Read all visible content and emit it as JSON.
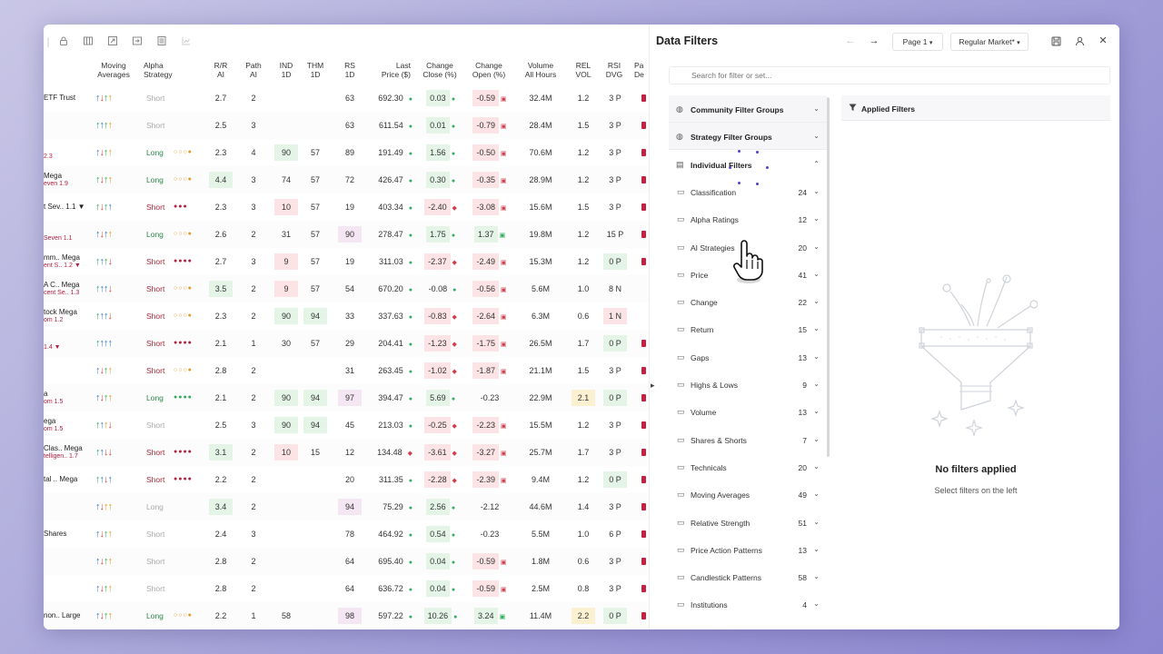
{
  "toolbar": {
    "icons": [
      "lock-icon",
      "columns-icon",
      "expand-icon",
      "collapse-icon",
      "calculator-icon",
      "chart-icon"
    ]
  },
  "columns": [
    "Moving\nAverages",
    "Alpha\nStrategy",
    "R/R\nAI",
    "Path\nAI",
    "IND\n1D",
    "THM\n1D",
    "RS\n1D",
    "Last\nPrice ($)",
    "Change\nClose (%)",
    "Change\nOpen (%)",
    "Volume\nAll Hours",
    "REL\nVOL",
    "RSI\nDVG",
    "Pa\nDe"
  ],
  "rows": [
    {
      "n1": "ETF Trust",
      "n2": "",
      "ma": "urgy",
      "st": "Short",
      "sc": "grey",
      "dots": "",
      "dc": "",
      "rr": "2.7",
      "rrh": "",
      "path": "2",
      "ind": "",
      "indh": "",
      "thm": "",
      "thmh": "",
      "rs": "63",
      "rsh": "",
      "price": "692.30",
      "pm": "g",
      "cc": "0.03",
      "cch": "g",
      "co": "-0.59",
      "coh": "r",
      "vol": "32.4M",
      "rel": "1.2",
      "relh": "",
      "rsi": "3 P",
      "rsih": "",
      "edge": true
    },
    {
      "n1": "",
      "n2": "",
      "ma": "gugy",
      "st": "Short",
      "sc": "grey",
      "dots": "",
      "dc": "",
      "rr": "2.5",
      "rrh": "",
      "path": "3",
      "ind": "",
      "indh": "",
      "thm": "",
      "thmh": "",
      "rs": "63",
      "rsh": "",
      "price": "611.54",
      "pm": "g",
      "cc": "0.01",
      "cch": "g",
      "co": "-0.79",
      "coh": "r",
      "vol": "28.4M",
      "rel": "1.5",
      "relh": "",
      "rsi": "3 P",
      "rsih": "",
      "edge": true
    },
    {
      "n1": "",
      "n2": "2.3",
      "ma": "urgy",
      "st": "Long",
      "sc": "long",
      "dots": "○○○●",
      "dc": "ora",
      "rr": "2.3",
      "rrh": "",
      "path": "4",
      "ind": "90",
      "indh": "g",
      "thm": "57",
      "thmh": "",
      "rs": "89",
      "rsh": "",
      "price": "191.49",
      "pm": "g",
      "cc": "1.56",
      "cch": "g",
      "co": "-0.50",
      "coh": "r",
      "vol": "70.6M",
      "rel": "1.2",
      "relh": "",
      "rsi": "3 P",
      "rsih": "",
      "edge": true
    },
    {
      "n1": "Mega",
      "n2": "even 1.9",
      "ma": "grgy",
      "st": "Long",
      "sc": "long",
      "dots": "○○○●",
      "dc": "ora",
      "rr": "4.4",
      "rrh": "g",
      "path": "3",
      "ind": "74",
      "indh": "",
      "thm": "57",
      "thmh": "",
      "rs": "72",
      "rsh": "",
      "price": "426.47",
      "pm": "g",
      "cc": "0.30",
      "cch": "g",
      "co": "-0.35",
      "coh": "r",
      "vol": "28.9M",
      "rel": "1.2",
      "relh": "",
      "rsi": "3 P",
      "rsih": "",
      "edge": true
    },
    {
      "n1": "t Sev.. 1.1 ▼",
      "n2": "",
      "ma": "grgu",
      "st": "Short",
      "sc": "short",
      "dots": "●●●",
      "dc": "red",
      "rr": "2.3",
      "rrh": "",
      "path": "3",
      "ind": "10",
      "indh": "r",
      "thm": "57",
      "thmh": "",
      "rs": "19",
      "rsh": "",
      "price": "403.34",
      "pm": "g",
      "cc": "-2.40",
      "cch": "r",
      "co": "-3.08",
      "coh": "r",
      "vol": "15.6M",
      "rel": "1.5",
      "relh": "",
      "rsi": "3 P",
      "rsih": "",
      "edge": true
    },
    {
      "n1": "",
      "n2": "Seven 1.1",
      "ma": "uruy",
      "st": "Long",
      "sc": "long",
      "dots": "○○○●",
      "dc": "ora",
      "rr": "2.6",
      "rrh": "",
      "path": "2",
      "ind": "31",
      "indh": "",
      "thm": "57",
      "thmh": "",
      "rs": "90",
      "rsh": "p",
      "price": "278.47",
      "pm": "g",
      "cc": "1.75",
      "cch": "g",
      "co": "1.37",
      "coh": "g",
      "vol": "19.8M",
      "rel": "1.2",
      "relh": "",
      "rsi": "15 P",
      "rsih": "",
      "edge": true
    },
    {
      "n1": "mm.. Mega",
      "n2": "ent S.. 1.2 ▼",
      "ma": "gugr",
      "st": "Short",
      "sc": "short",
      "dots": "●●●●",
      "dc": "red",
      "rr": "2.7",
      "rrh": "",
      "path": "3",
      "ind": "9",
      "indh": "r",
      "thm": "57",
      "thmh": "",
      "rs": "19",
      "rsh": "",
      "price": "311.03",
      "pm": "g",
      "cc": "-2.37",
      "cch": "r",
      "co": "-2.49",
      "coh": "r",
      "vol": "15.3M",
      "rel": "1.2",
      "relh": "",
      "rsi": "0 P",
      "rsih": "g",
      "edge": true
    },
    {
      "n1": "A C.. Mega",
      "n2": "cent Se.. 1.3",
      "ma": "guur",
      "st": "Short",
      "sc": "short",
      "dots": "○○○●",
      "dc": "ora",
      "rr": "3.5",
      "rrh": "g",
      "path": "2",
      "ind": "9",
      "indh": "r",
      "thm": "57",
      "thmh": "",
      "rs": "54",
      "rsh": "",
      "price": "670.20",
      "pm": "g",
      "cc": "-0.08",
      "cch": "",
      "co": "-0.56",
      "coh": "r",
      "vol": "5.6M",
      "rel": "1.0",
      "relh": "",
      "rsi": "8 N",
      "rsih": "",
      "edge": false
    },
    {
      "n1": "tock Mega",
      "n2": "om 1.2",
      "ma": "guur",
      "st": "Short",
      "sc": "short",
      "dots": "○○○●",
      "dc": "ora",
      "rr": "2.3",
      "rrh": "",
      "path": "2",
      "ind": "90",
      "indh": "g",
      "thm": "94",
      "thmh": "g",
      "rs": "33",
      "rsh": "",
      "price": "337.63",
      "pm": "g",
      "cc": "-0.83",
      "cch": "r",
      "co": "-2.64",
      "coh": "r",
      "vol": "6.3M",
      "rel": "0.6",
      "relh": "",
      "rsi": "1 N",
      "rsih": "r",
      "edge": false
    },
    {
      "n1": "",
      "n2": "1.4 ▼",
      "ma": "guuu",
      "st": "Short",
      "sc": "short",
      "dots": "●●●●",
      "dc": "red",
      "rr": "2.1",
      "rrh": "",
      "path": "1",
      "ind": "30",
      "indh": "",
      "thm": "57",
      "thmh": "",
      "rs": "29",
      "rsh": "",
      "price": "204.41",
      "pm": "g",
      "cc": "-1.23",
      "cch": "r",
      "co": "-1.75",
      "coh": "r",
      "vol": "26.5M",
      "rel": "1.7",
      "relh": "",
      "rsi": "0 P",
      "rsih": "g",
      "edge": true
    },
    {
      "n1": "",
      "n2": "",
      "ma": "urgy",
      "st": "Short",
      "sc": "short",
      "dots": "○○○●",
      "dc": "ora",
      "rr": "2.8",
      "rrh": "",
      "path": "2",
      "ind": "",
      "indh": "",
      "thm": "",
      "thmh": "",
      "rs": "31",
      "rsh": "",
      "price": "263.45",
      "pm": "g",
      "cc": "-1.02",
      "cch": "r",
      "co": "-1.87",
      "coh": "r",
      "vol": "21.1M",
      "rel": "1.5",
      "relh": "",
      "rsi": "3 P",
      "rsih": "",
      "edge": true
    },
    {
      "n1": "a",
      "n2": "om 1.5",
      "ma": "urgy",
      "st": "Long",
      "sc": "long",
      "dots": "●●●●",
      "dc": "grn",
      "rr": "2.1",
      "rrh": "",
      "path": "2",
      "ind": "90",
      "indh": "g",
      "thm": "94",
      "thmh": "g",
      "rs": "97",
      "rsh": "p",
      "price": "394.47",
      "pm": "g",
      "cc": "5.69",
      "cch": "g",
      "co": "-0.23",
      "coh": "",
      "vol": "22.9M",
      "rel": "2.1",
      "relh": "y",
      "rsi": "0 P",
      "rsih": "g",
      "edge": true
    },
    {
      "n1": "ega",
      "n2": "om 1.5",
      "ma": "guyr",
      "st": "Short",
      "sc": "grey",
      "dots": "",
      "dc": "",
      "rr": "2.5",
      "rrh": "",
      "path": "3",
      "ind": "90",
      "indh": "g",
      "thm": "94",
      "thmh": "g",
      "rs": "45",
      "rsh": "",
      "price": "213.03",
      "pm": "g",
      "cc": "-0.25",
      "cch": "r",
      "co": "-2.23",
      "coh": "r",
      "vol": "15.5M",
      "rel": "1.2",
      "relh": "",
      "rsi": "3 P",
      "rsih": "",
      "edge": true
    },
    {
      "n1": "Clas.. Mega",
      "n2": "telligen.. 1.7",
      "ma": "gurr",
      "st": "Short",
      "sc": "short",
      "dots": "●●●●",
      "dc": "red",
      "rr": "3.1",
      "rrh": "g",
      "path": "2",
      "ind": "10",
      "indh": "r",
      "thm": "15",
      "thmh": "",
      "rs": "12",
      "rsh": "",
      "price": "134.48",
      "pm": "r",
      "cc": "-3.61",
      "cch": "r",
      "co": "-3.27",
      "coh": "r",
      "vol": "25.7M",
      "rel": "1.7",
      "relh": "",
      "rsi": "3 P",
      "rsih": "",
      "edge": true
    },
    {
      "n1": "tal .. Mega",
      "n2": "",
      "ma": "guru",
      "st": "Short",
      "sc": "short",
      "dots": "●●●●",
      "dc": "red",
      "rr": "2.2",
      "rrh": "",
      "path": "2",
      "ind": "",
      "indh": "",
      "thm": "",
      "thmh": "",
      "rs": "20",
      "rsh": "",
      "price": "311.35",
      "pm": "g",
      "cc": "-2.28",
      "cch": "r",
      "co": "-2.39",
      "coh": "r",
      "vol": "9.4M",
      "rel": "1.2",
      "relh": "",
      "rsi": "0 P",
      "rsih": "g",
      "edge": true
    },
    {
      "n1": "",
      "n2": "",
      "ma": "uryy",
      "st": "Long",
      "sc": "grey",
      "dots": "",
      "dc": "",
      "rr": "3.4",
      "rrh": "g",
      "path": "2",
      "ind": "",
      "indh": "",
      "thm": "",
      "thmh": "",
      "rs": "94",
      "rsh": "p",
      "price": "75.29",
      "pm": "g",
      "cc": "2.56",
      "cch": "g",
      "co": "-2.12",
      "coh": "",
      "vol": "44.6M",
      "rel": "1.4",
      "relh": "",
      "rsi": "3 P",
      "rsih": "",
      "edge": true
    },
    {
      "n1": "Shares",
      "n2": "",
      "ma": "urgy",
      "st": "Short",
      "sc": "grey",
      "dots": "",
      "dc": "",
      "rr": "2.4",
      "rrh": "",
      "path": "3",
      "ind": "",
      "indh": "",
      "thm": "",
      "thmh": "",
      "rs": "78",
      "rsh": "",
      "price": "464.92",
      "pm": "g",
      "cc": "0.54",
      "cch": "g",
      "co": "-0.23",
      "coh": "",
      "vol": "5.5M",
      "rel": "1.0",
      "relh": "",
      "rsi": "6 P",
      "rsih": "",
      "edge": true
    },
    {
      "n1": "",
      "n2": "",
      "ma": "urgy",
      "st": "Short",
      "sc": "grey",
      "dots": "",
      "dc": "",
      "rr": "2.8",
      "rrh": "",
      "path": "2",
      "ind": "",
      "indh": "",
      "thm": "",
      "thmh": "",
      "rs": "64",
      "rsh": "",
      "price": "695.40",
      "pm": "g",
      "cc": "0.04",
      "cch": "g",
      "co": "-0.59",
      "coh": "r",
      "vol": "1.8M",
      "rel": "0.6",
      "relh": "",
      "rsi": "3 P",
      "rsih": "",
      "edge": true
    },
    {
      "n1": "",
      "n2": "",
      "ma": "urgy",
      "st": "Short",
      "sc": "grey",
      "dots": "",
      "dc": "",
      "rr": "2.8",
      "rrh": "",
      "path": "2",
      "ind": "",
      "indh": "",
      "thm": "",
      "thmh": "",
      "rs": "64",
      "rsh": "",
      "price": "636.72",
      "pm": "g",
      "cc": "0.04",
      "cch": "g",
      "co": "-0.59",
      "coh": "r",
      "vol": "2.5M",
      "rel": "0.8",
      "relh": "",
      "rsi": "3 P",
      "rsih": "",
      "edge": true
    },
    {
      "n1": "non.. Large",
      "n2": "",
      "ma": "urgy",
      "st": "Long",
      "sc": "long",
      "dots": "○○○●",
      "dc": "ora",
      "rr": "2.2",
      "rrh": "",
      "path": "1",
      "ind": "58",
      "indh": "",
      "thm": "",
      "thmh": "",
      "rs": "98",
      "rsh": "p",
      "price": "597.22",
      "pm": "g",
      "cc": "10.26",
      "cch": "g",
      "co": "3.24",
      "coh": "g",
      "vol": "11.4M",
      "rel": "2.2",
      "relh": "y",
      "rsi": "0 P",
      "rsih": "g",
      "edge": true
    }
  ],
  "panel": {
    "title": "Data Filters",
    "page": "Page 1",
    "market": "Regular Market*",
    "search_placeholder": "Search for filter or set...",
    "groups": [
      {
        "label": "Community Filter Groups",
        "icon": "globe-icon",
        "expanded": false
      },
      {
        "label": "Strategy Filter Groups",
        "icon": "globe-icon",
        "expanded": false
      },
      {
        "label": "Individual Filters",
        "icon": "stack-icon",
        "expanded": true
      }
    ],
    "categories": [
      {
        "label": "Classification",
        "count": "24"
      },
      {
        "label": "Alpha Ratings",
        "count": "12"
      },
      {
        "label": "AI Strategies",
        "count": "20"
      },
      {
        "label": "Price",
        "count": "41"
      },
      {
        "label": "Change",
        "count": "22"
      },
      {
        "label": "Return",
        "count": "15"
      },
      {
        "label": "Gaps",
        "count": "13"
      },
      {
        "label": "Highs & Lows",
        "count": "9"
      },
      {
        "label": "Volume",
        "count": "13"
      },
      {
        "label": "Shares & Shorts",
        "count": "7"
      },
      {
        "label": "Technicals",
        "count": "20"
      },
      {
        "label": "Moving Averages",
        "count": "49"
      },
      {
        "label": "Relative Strength",
        "count": "51"
      },
      {
        "label": "Price Action Patterns",
        "count": "13"
      },
      {
        "label": "Candlestick Patterns",
        "count": "58"
      },
      {
        "label": "Institutions",
        "count": "4"
      }
    ],
    "applied_title": "Applied Filters",
    "empty_title": "No filters applied",
    "empty_sub": "Select filters on the left"
  },
  "colors": {
    "accent": "#5a3ec8",
    "positive": "#2fae5a",
    "negative": "#d24050",
    "short": "#a52a3a",
    "long": "#2a8a4a"
  }
}
